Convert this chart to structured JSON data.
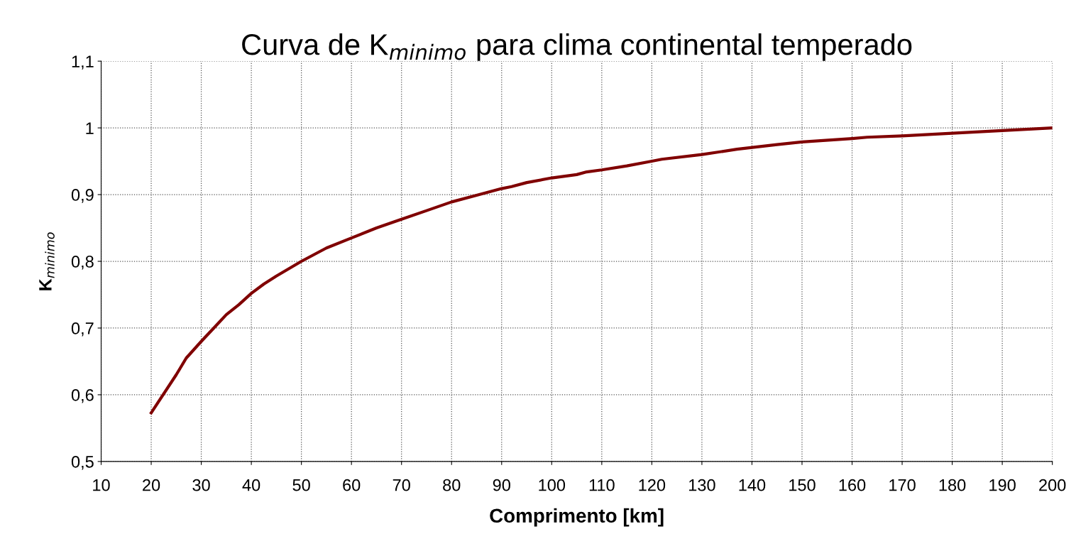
{
  "chart_data": {
    "type": "line",
    "title": "Curva de K$_{minimo}$ para clima continental temperado",
    "xlabel": "Comprimento [km]",
    "ylabel": "K$_{minimo}$",
    "x": [
      20,
      25,
      27,
      30,
      32.5,
      35,
      37.5,
      40,
      42.5,
      45,
      50,
      55,
      60,
      65,
      70,
      75,
      80,
      85,
      90,
      92,
      95,
      100,
      105,
      107,
      110,
      115,
      120,
      122,
      130,
      137,
      145,
      150,
      160,
      163,
      170,
      180,
      190,
      200
    ],
    "series": [
      {
        "color": "#800000",
        "values": [
          0.573,
          0.63,
          0.655,
          0.68,
          0.7,
          0.72,
          0.735,
          0.752,
          0.766,
          0.778,
          0.8,
          0.82,
          0.835,
          0.85,
          0.863,
          0.876,
          0.889,
          0.899,
          0.909,
          0.912,
          0.918,
          0.925,
          0.93,
          0.934,
          0.937,
          0.943,
          0.95,
          0.953,
          0.96,
          0.968,
          0.975,
          0.979,
          0.984,
          0.986,
          0.988,
          0.992,
          0.996,
          1.0
        ]
      }
    ],
    "xlim": [
      10,
      200
    ],
    "xticks": [
      10,
      20,
      30,
      40,
      50,
      60,
      70,
      80,
      90,
      100,
      110,
      120,
      130,
      140,
      150,
      160,
      170,
      180,
      190,
      200
    ],
    "ylim": [
      0.5,
      1.1
    ],
    "yticks": [
      {
        "value": 0.5,
        "label": "0,5"
      },
      {
        "value": 0.6,
        "label": "0,6"
      },
      {
        "value": 0.7,
        "label": "0,7"
      },
      {
        "value": 0.8,
        "label": "0,8"
      },
      {
        "value": 0.9,
        "label": "0,9"
      },
      {
        "value": 1,
        "label": "1"
      },
      {
        "value": 1.1,
        "label": "1,1"
      }
    ],
    "grid": true,
    "marker": "none",
    "line_style": "solid",
    "legend": false
  }
}
